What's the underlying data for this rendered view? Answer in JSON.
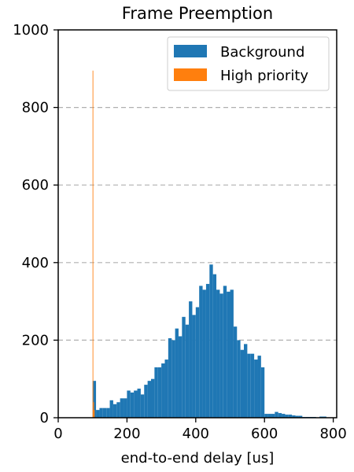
{
  "chart_data": {
    "type": "bar",
    "title": "Frame Preemption",
    "xlabel": "end-to-end delay [us]",
    "ylabel": "",
    "xlim": [
      0,
      810
    ],
    "ylim": [
      0,
      1000
    ],
    "xticks": [
      0,
      200,
      400,
      600,
      800
    ],
    "yticks": [
      0,
      200,
      400,
      600,
      800,
      1000
    ],
    "grid": "y-dashed",
    "legend_position": "top-right",
    "bin_width": 10,
    "series": [
      {
        "name": "Background",
        "color": "#1f77b4",
        "bins": [
          [
            100,
            95
          ],
          [
            110,
            20
          ],
          [
            120,
            25
          ],
          [
            130,
            25
          ],
          [
            140,
            25
          ],
          [
            150,
            45
          ],
          [
            160,
            35
          ],
          [
            170,
            40
          ],
          [
            180,
            50
          ],
          [
            190,
            50
          ],
          [
            200,
            70
          ],
          [
            210,
            65
          ],
          [
            220,
            70
          ],
          [
            230,
            75
          ],
          [
            240,
            60
          ],
          [
            250,
            85
          ],
          [
            260,
            95
          ],
          [
            270,
            100
          ],
          [
            280,
            130
          ],
          [
            290,
            130
          ],
          [
            300,
            140
          ],
          [
            310,
            150
          ],
          [
            320,
            205
          ],
          [
            330,
            200
          ],
          [
            340,
            230
          ],
          [
            350,
            210
          ],
          [
            360,
            260
          ],
          [
            370,
            240
          ],
          [
            380,
            300
          ],
          [
            390,
            265
          ],
          [
            400,
            285
          ],
          [
            410,
            340
          ],
          [
            420,
            330
          ],
          [
            430,
            345
          ],
          [
            440,
            395
          ],
          [
            450,
            370
          ],
          [
            460,
            330
          ],
          [
            470,
            320
          ],
          [
            480,
            340
          ],
          [
            490,
            325
          ],
          [
            500,
            330
          ],
          [
            510,
            235
          ],
          [
            520,
            200
          ],
          [
            530,
            175
          ],
          [
            540,
            190
          ],
          [
            550,
            165
          ],
          [
            560,
            165
          ],
          [
            570,
            150
          ],
          [
            580,
            160
          ],
          [
            590,
            130
          ],
          [
            600,
            10
          ],
          [
            610,
            10
          ],
          [
            620,
            10
          ],
          [
            630,
            15
          ],
          [
            640,
            12
          ],
          [
            650,
            10
          ],
          [
            660,
            8
          ],
          [
            670,
            8
          ],
          [
            680,
            6
          ],
          [
            690,
            5
          ],
          [
            700,
            5
          ],
          [
            710,
            2
          ],
          [
            720,
            2
          ],
          [
            730,
            2
          ],
          [
            740,
            2
          ],
          [
            750,
            1
          ],
          [
            760,
            3
          ],
          [
            770,
            3
          ],
          [
            780,
            1
          ],
          [
            790,
            1
          ]
        ]
      },
      {
        "name": "High priority",
        "color": "#ff7f0e",
        "bins": [
          [
            100,
            895
          ],
          [
            102,
            40
          ],
          [
            104,
            20
          ]
        ],
        "bin_width": 2
      }
    ]
  }
}
